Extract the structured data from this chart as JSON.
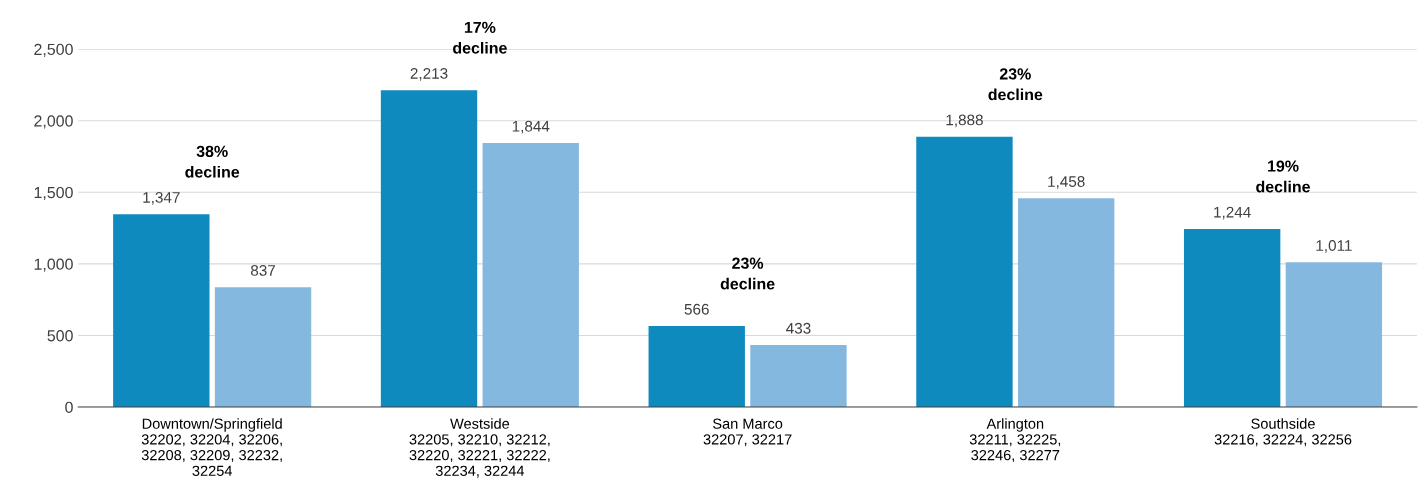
{
  "chart_data": {
    "type": "bar",
    "categories": [
      "Downtown/Springfield\n32202, 32204, 32206,\n32208, 32209, 32232,\n32254",
      "Westside\n32205, 32210, 32212,\n32220, 32221, 32222,\n32234, 32244",
      "San Marco\n32207, 32217",
      "Arlington\n32211, 32225,\n32246, 32277",
      "Southside\n32216, 32224, 32256"
    ],
    "series": [
      {
        "color": "#0e8abf",
        "values": [
          1347,
          2213,
          566,
          1888,
          1244
        ],
        "value_labels": [
          "1,347",
          "2,213",
          "566",
          "1,888",
          "1,244"
        ]
      },
      {
        "color": "#85b8df",
        "values": [
          837,
          1844,
          433,
          1458,
          1011
        ],
        "value_labels": [
          "837",
          "1,844",
          "433",
          "1,458",
          "1,011"
        ]
      }
    ],
    "annotations": [
      "38%\ndecline",
      "17%\ndecline",
      "23%\ndecline",
      "23%\ndecline",
      "19%\ndecline"
    ],
    "ylim": [
      0,
      2500
    ],
    "yticks": [
      {
        "value": 0,
        "label": "0"
      },
      {
        "value": 500,
        "label": "500"
      },
      {
        "value": 1000,
        "label": "1,000"
      },
      {
        "value": 1500,
        "label": "1,500"
      },
      {
        "value": 2000,
        "label": "2,000"
      },
      {
        "value": 2500,
        "label": "2,500"
      }
    ],
    "grid": "y"
  }
}
